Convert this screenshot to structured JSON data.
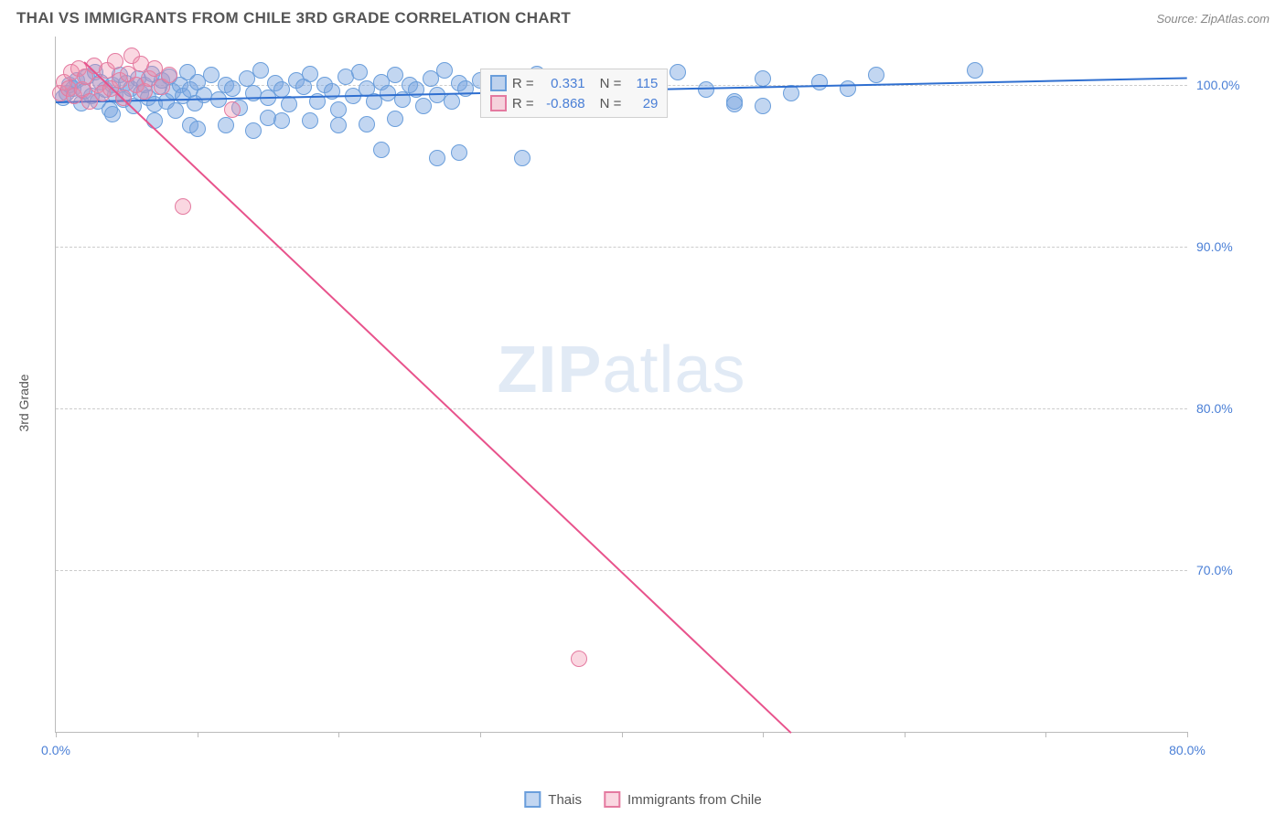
{
  "header": {
    "title": "THAI VS IMMIGRANTS FROM CHILE 3RD GRADE CORRELATION CHART",
    "source": "Source: ZipAtlas.com"
  },
  "watermark": {
    "zip": "ZIP",
    "atlas": "atlas"
  },
  "chart": {
    "type": "scatter",
    "ylabel": "3rd Grade",
    "xlim": [
      0,
      80
    ],
    "ylim": [
      60,
      103
    ],
    "xticks": [
      0,
      10,
      20,
      30,
      40,
      50,
      60,
      70,
      80
    ],
    "xtick_labels": {
      "0": "0.0%",
      "80": "80.0%"
    },
    "yticks": [
      70,
      80,
      90,
      100
    ],
    "ytick_labels": [
      "70.0%",
      "80.0%",
      "90.0%",
      "100.0%"
    ],
    "grid_color": "#cccccc",
    "background_color": "#ffffff",
    "series": [
      {
        "name": "Thais",
        "marker_fill": "rgba(120,165,225,0.45)",
        "marker_stroke": "#6a9edb",
        "marker_radius": 9,
        "trend_color": "#2f6fd0",
        "trend": {
          "x1": 0,
          "y1": 99.0,
          "x2": 80,
          "y2": 100.5
        },
        "R": "0.331",
        "N": "115",
        "points": [
          [
            0.5,
            99.2
          ],
          [
            0.8,
            99.5
          ],
          [
            1.0,
            100.0
          ],
          [
            1.2,
            99.8
          ],
          [
            1.5,
            100.3
          ],
          [
            1.8,
            98.9
          ],
          [
            2.0,
            99.6
          ],
          [
            2.2,
            100.5
          ],
          [
            2.5,
            99.3
          ],
          [
            2.8,
            100.8
          ],
          [
            3.0,
            99.0
          ],
          [
            3.2,
            100.2
          ],
          [
            3.5,
            99.7
          ],
          [
            3.8,
            98.5
          ],
          [
            4.0,
            100.0
          ],
          [
            4.2,
            99.4
          ],
          [
            4.5,
            100.6
          ],
          [
            4.8,
            99.1
          ],
          [
            5.0,
            100.1
          ],
          [
            5.3,
            99.8
          ],
          [
            5.5,
            98.7
          ],
          [
            5.8,
            100.4
          ],
          [
            6.0,
            99.5
          ],
          [
            6.3,
            100.0
          ],
          [
            6.5,
            99.2
          ],
          [
            6.8,
            100.7
          ],
          [
            7.0,
            98.8
          ],
          [
            7.3,
            99.9
          ],
          [
            7.5,
            100.3
          ],
          [
            7.8,
            99.0
          ],
          [
            8.0,
            100.5
          ],
          [
            8.3,
            99.6
          ],
          [
            8.5,
            98.4
          ],
          [
            8.8,
            100.0
          ],
          [
            9.0,
            99.3
          ],
          [
            9.3,
            100.8
          ],
          [
            9.5,
            99.7
          ],
          [
            9.8,
            98.9
          ],
          [
            10.0,
            100.2
          ],
          [
            10.5,
            99.4
          ],
          [
            11.0,
            100.6
          ],
          [
            11.5,
            99.1
          ],
          [
            12.0,
            100.0
          ],
          [
            12.5,
            99.8
          ],
          [
            13.0,
            98.6
          ],
          [
            13.5,
            100.4
          ],
          [
            14.0,
            99.5
          ],
          [
            14.5,
            100.9
          ],
          [
            15.0,
            99.2
          ],
          [
            15.5,
            100.1
          ],
          [
            16.0,
            99.7
          ],
          [
            16.5,
            98.8
          ],
          [
            17.0,
            100.3
          ],
          [
            17.5,
            99.9
          ],
          [
            18.0,
            100.7
          ],
          [
            18.5,
            99.0
          ],
          [
            19.0,
            100.0
          ],
          [
            19.5,
            99.6
          ],
          [
            20.0,
            98.5
          ],
          [
            20.5,
            100.5
          ],
          [
            21.0,
            99.3
          ],
          [
            21.5,
            100.8
          ],
          [
            22.0,
            99.8
          ],
          [
            22.5,
            99.0
          ],
          [
            23.0,
            100.2
          ],
          [
            23.5,
            99.5
          ],
          [
            24.0,
            100.6
          ],
          [
            24.5,
            99.1
          ],
          [
            25.0,
            100.0
          ],
          [
            25.5,
            99.7
          ],
          [
            26.0,
            98.7
          ],
          [
            26.5,
            100.4
          ],
          [
            27.0,
            99.4
          ],
          [
            27.5,
            100.9
          ],
          [
            28.0,
            99.0
          ],
          [
            28.5,
            100.1
          ],
          [
            29.0,
            99.8
          ],
          [
            30.0,
            100.3
          ],
          [
            31.0,
            99.5
          ],
          [
            32.0,
            100.0
          ],
          [
            33.0,
            99.2
          ],
          [
            34.0,
            100.7
          ],
          [
            35.0,
            99.9
          ],
          [
            36.0,
            98.6
          ],
          [
            37.0,
            100.5
          ],
          [
            38.0,
            99.6
          ],
          [
            40.0,
            100.0
          ],
          [
            42.0,
            99.3
          ],
          [
            44.0,
            100.8
          ],
          [
            46.0,
            99.7
          ],
          [
            48.0,
            99.0
          ],
          [
            50.0,
            100.4
          ],
          [
            52.0,
            99.5
          ],
          [
            54.0,
            100.2
          ],
          [
            56.0,
            99.8
          ],
          [
            58.0,
            100.6
          ],
          [
            65.0,
            100.9
          ],
          [
            48.0,
            98.8
          ],
          [
            50.0,
            98.7
          ],
          [
            23.0,
            96.0
          ],
          [
            27.0,
            95.5
          ],
          [
            28.5,
            95.8
          ],
          [
            33.0,
            95.5
          ],
          [
            9.5,
            97.5
          ],
          [
            15.0,
            98.0
          ],
          [
            18.0,
            97.8
          ],
          [
            20.0,
            97.5
          ],
          [
            7.0,
            97.8
          ],
          [
            12.0,
            97.5
          ],
          [
            14.0,
            97.2
          ],
          [
            16.0,
            97.8
          ],
          [
            10.0,
            97.3
          ],
          [
            22.0,
            97.6
          ],
          [
            24.0,
            97.9
          ],
          [
            4.0,
            98.2
          ]
        ]
      },
      {
        "name": "Immigrants from Chile",
        "marker_fill": "rgba(240,140,170,0.35)",
        "marker_stroke": "#e47aa0",
        "marker_radius": 9,
        "trend_color": "#e8538c",
        "trend": {
          "x1": 2,
          "y1": 101.5,
          "x2": 52,
          "y2": 60.0
        },
        "R": "-0.868",
        "N": "29",
        "points": [
          [
            0.3,
            99.5
          ],
          [
            0.6,
            100.2
          ],
          [
            0.9,
            99.8
          ],
          [
            1.1,
            100.8
          ],
          [
            1.3,
            99.3
          ],
          [
            1.6,
            101.0
          ],
          [
            1.9,
            99.7
          ],
          [
            2.1,
            100.5
          ],
          [
            2.4,
            99.0
          ],
          [
            2.7,
            101.2
          ],
          [
            3.0,
            100.0
          ],
          [
            3.3,
            99.5
          ],
          [
            3.6,
            100.9
          ],
          [
            3.9,
            99.8
          ],
          [
            4.2,
            101.5
          ],
          [
            4.5,
            100.3
          ],
          [
            4.8,
            99.2
          ],
          [
            5.1,
            100.7
          ],
          [
            5.4,
            101.8
          ],
          [
            5.7,
            100.0
          ],
          [
            6.0,
            101.3
          ],
          [
            6.3,
            99.6
          ],
          [
            6.6,
            100.4
          ],
          [
            7.0,
            101.0
          ],
          [
            7.5,
            99.9
          ],
          [
            8.0,
            100.6
          ],
          [
            12.5,
            98.5
          ],
          [
            9.0,
            92.5
          ],
          [
            37.0,
            64.5
          ]
        ]
      }
    ],
    "legend_stats": {
      "R_label": "R =",
      "N_label": "N ="
    },
    "bottom_legend": [
      "Thais",
      "Immigrants from Chile"
    ]
  }
}
